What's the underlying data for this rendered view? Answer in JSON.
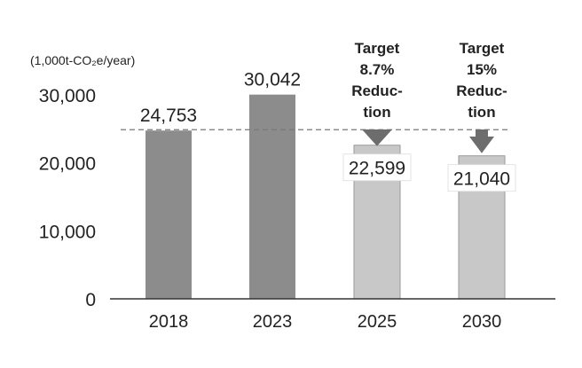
{
  "chart_data": {
    "type": "bar",
    "unit_label": "(1,000t-CO₂e/year)",
    "categories": [
      "2018",
      "2023",
      "2025",
      "2030"
    ],
    "values": [
      24753,
      30042,
      22599,
      21040
    ],
    "value_labels": [
      "24,753",
      "30,042",
      "22,599",
      "21,040"
    ],
    "bar_kinds": [
      "actual",
      "actual",
      "target",
      "target"
    ],
    "targets": [
      {
        "category": "2025",
        "lines": [
          "Target",
          "8.7%",
          "Reduc-",
          "tion"
        ]
      },
      {
        "category": "2030",
        "lines": [
          "Target",
          "15%",
          "Reduc-",
          "tion"
        ]
      }
    ],
    "yticks": [
      0,
      10000,
      20000,
      30000
    ],
    "ytick_labels": [
      "0",
      "10,000",
      "20,000",
      "30,000"
    ],
    "ylim": [
      0,
      30000
    ],
    "reference_line": {
      "value": 24753,
      "style": "dashed"
    },
    "grid": false,
    "colors": {
      "actual": "#8c8c8c",
      "target": "#c8c8c8",
      "arrow": "#6d6d6d",
      "axis": "#333333",
      "dashed": "#777777"
    }
  }
}
